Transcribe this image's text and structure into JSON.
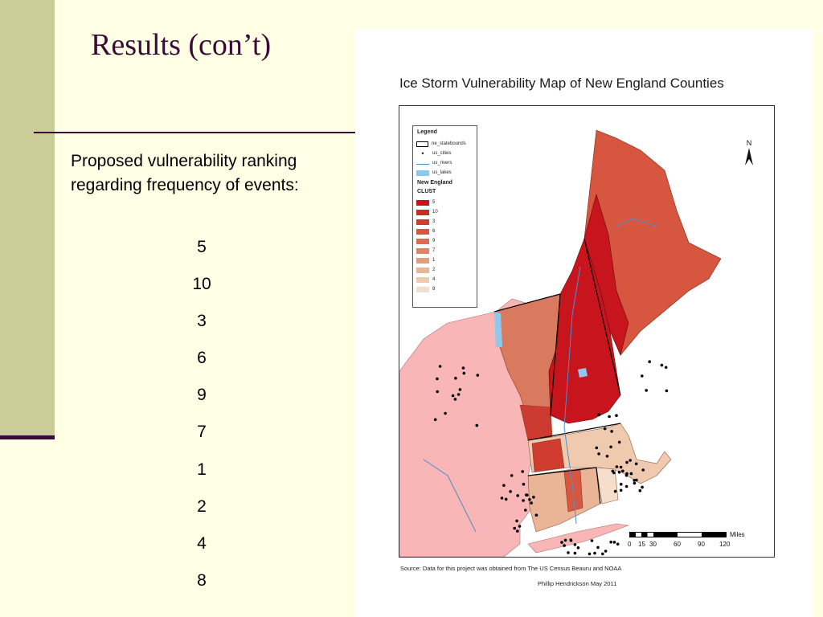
{
  "slide": {
    "title": "Results (con’t)",
    "intro_text": "Proposed vulnerability ranking regarding frequency of events:",
    "ranking": [
      "5",
      "10",
      "3",
      "6",
      "9",
      "7",
      "1",
      "2",
      "4",
      "8"
    ]
  },
  "map": {
    "title": "Ice Storm Vulnerability Map of New England Counties",
    "north_label": "N",
    "legend": {
      "title": "Legend",
      "layers": [
        {
          "label": "ne_statebounds",
          "icon": "state-boundary-outline"
        },
        {
          "label": "us_cities",
          "icon": "city-dot"
        },
        {
          "label": "us_rivers",
          "icon": "river-line"
        },
        {
          "label": "us_lakes",
          "icon": "lake-fill"
        }
      ],
      "group_title": "New England",
      "field_title": "CLUST",
      "classes": [
        {
          "label": "5",
          "color": "#C8141C"
        },
        {
          "label": "10",
          "color": "#CC2A24"
        },
        {
          "label": "3",
          "color": "#D03C30"
        },
        {
          "label": "6",
          "color": "#D65640"
        },
        {
          "label": "9",
          "color": "#DB6E52"
        },
        {
          "label": "7",
          "color": "#DF8464"
        },
        {
          "label": "1",
          "color": "#E49C7E"
        },
        {
          "label": "2",
          "color": "#EAB496"
        },
        {
          "label": "4",
          "color": "#EFCAAE"
        },
        {
          "label": "8",
          "color": "#F5DECB"
        }
      ]
    },
    "scale_bar": {
      "unit": "Miles",
      "ticks": [
        "0",
        "15",
        "30",
        "60",
        "90",
        "120"
      ]
    },
    "source": "Source: Data for this project was obtained from The US Census Beauru and NOAA",
    "author": "Phillip Hendrickson May 2011",
    "colors": {
      "ny_counties": "#F8B6B6",
      "river": "#4A90D0",
      "lake": "#8EC8EE",
      "state_boundary": "#000000"
    }
  }
}
